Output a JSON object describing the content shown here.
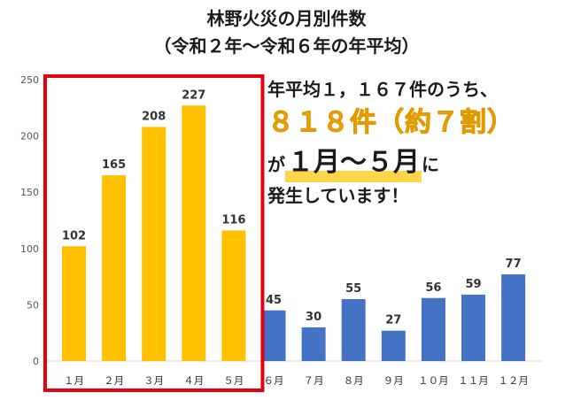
{
  "title": {
    "line1": "林野火災の月別件数",
    "line2": "（令和２年～令和６年の年平均）"
  },
  "annotation": {
    "line1": "年平均１，１６７件のうち、",
    "line2": "８１８件（約７割）",
    "line3_prefix": "が",
    "line3_period": "１月～５月",
    "line3_suffix": "に",
    "line4": "発生しています！"
  },
  "chart_data": {
    "type": "bar",
    "title": "林野火災の月別件数",
    "subtitle": "（令和２年～令和６年の年平均）",
    "categories": [
      "１月",
      "２月",
      "３月",
      "４月",
      "５月",
      "６月",
      "７月",
      "８月",
      "９月",
      "１０月",
      "１１月",
      "１２月"
    ],
    "values": [
      102,
      165,
      208,
      227,
      116,
      45,
      30,
      55,
      27,
      56,
      59,
      77
    ],
    "highlight": {
      "range": [
        "１月",
        "５月"
      ],
      "color": "#ffc000",
      "box_color": "#e3000f"
    },
    "colors": {
      "highlight_bars": "#ffc000",
      "other_bars": "#4472c4"
    },
    "ylim": [
      0,
      250
    ],
    "yticks": [
      0,
      50,
      100,
      150,
      200,
      250
    ],
    "grid": false,
    "xlabel": "",
    "ylabel": ""
  }
}
